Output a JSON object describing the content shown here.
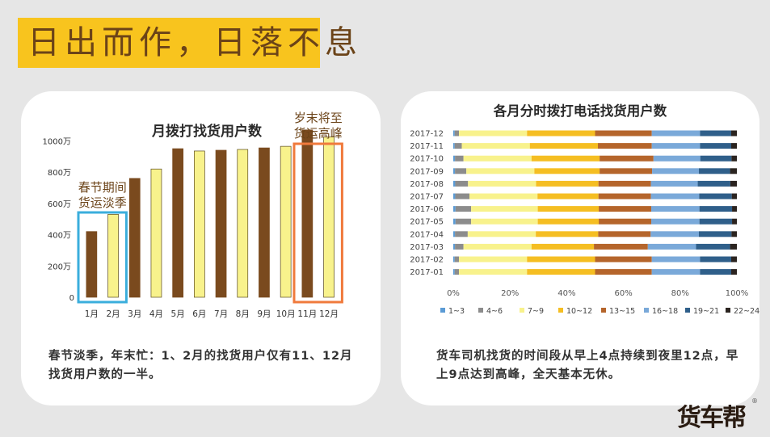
{
  "page": {
    "title": "日出而作，日落不息",
    "logo_text": "货车帮",
    "logo_mark": "®"
  },
  "colors": {
    "banner": "#f8c41e",
    "title_text": "#6b4318",
    "bar_dark": "#7a4a1e",
    "bar_light": "#f8f28c",
    "highlight_blue": "#3aaedc",
    "highlight_orange": "#f07a3c",
    "annotation_text": "#6b4318"
  },
  "chart_data": [
    {
      "type": "bar",
      "title": "月拨打找货用户数",
      "categories": [
        "1月",
        "2月",
        "3月",
        "4月",
        "5月",
        "6月",
        "7月",
        "8月",
        "9月",
        "10月",
        "11月",
        "12月"
      ],
      "values": [
        420,
        530,
        760,
        820,
        950,
        935,
        940,
        945,
        955,
        965,
        1070,
        1025
      ],
      "bar_styles": [
        "dark",
        "light",
        "dark",
        "light",
        "dark",
        "light",
        "dark",
        "light",
        "dark",
        "light",
        "dark",
        "light"
      ],
      "yticks": [
        {
          "value": 0,
          "label": "0"
        },
        {
          "value": 200,
          "label": "200万"
        },
        {
          "value": 400,
          "label": "400万"
        },
        {
          "value": 600,
          "label": "600万"
        },
        {
          "value": 800,
          "label": "800万"
        },
        {
          "value": 1000,
          "label": "1000万"
        }
      ],
      "ylim": [
        0,
        1100
      ],
      "annotations": [
        {
          "lines": [
            "春节期间",
            "货运淡季"
          ],
          "categories": [
            "1月",
            "2月"
          ],
          "color": "#3aaedc"
        },
        {
          "lines": [
            "岁末将至",
            "货运高峰"
          ],
          "categories": [
            "11月",
            "12月"
          ],
          "color": "#f07a3c"
        }
      ],
      "note": "春节淡季，年末忙：1、2月的找货用户仅有11、12月找货用户数的一半。"
    },
    {
      "type": "bar",
      "orientation": "horizontal",
      "stacked": "percent",
      "title": "各月分时拨打电话找货用户数",
      "categories": [
        "2017-12",
        "2017-11",
        "2017-10",
        "2017-09",
        "2017-08",
        "2017-07",
        "2017-06",
        "2017-05",
        "2017-04",
        "2017-03",
        "2017-02",
        "2017-01"
      ],
      "xticks": [
        "0%",
        "20%",
        "40%",
        "60%",
        "80%",
        "100%"
      ],
      "legend_position": "bottom",
      "series": [
        {
          "name": "1~3",
          "color": "#5b9bd5",
          "values": [
            0.5,
            0.5,
            0.6,
            0.6,
            0.7,
            0.7,
            0.8,
            0.8,
            0.6,
            0.6,
            0.5,
            0.5
          ]
        },
        {
          "name": "4~6",
          "color": "#8c8c8c",
          "values": [
            1.5,
            2.5,
            3,
            4,
            4.5,
            5,
            5.5,
            5.5,
            4.5,
            3,
            1.5,
            1.5
          ]
        },
        {
          "name": "7~9",
          "color": "#f8f28c",
          "values": [
            24,
            24,
            24,
            24,
            24,
            24,
            23.5,
            23.5,
            24,
            24,
            24,
            24
          ]
        },
        {
          "name": "10~12",
          "color": "#f5be22",
          "values": [
            24,
            24,
            24,
            23,
            22,
            21.5,
            21.5,
            21.5,
            22,
            22,
            24,
            24
          ]
        },
        {
          "name": "13~15",
          "color": "#b5652b",
          "values": [
            20,
            19,
            19,
            18.5,
            18.5,
            18.5,
            18.5,
            18.5,
            18.5,
            19,
            20,
            20
          ]
        },
        {
          "name": "16~18",
          "color": "#7aa9d9",
          "values": [
            17,
            17,
            16.5,
            16.5,
            16.5,
            17,
            17,
            17,
            17,
            17,
            17,
            17
          ]
        },
        {
          "name": "19~21",
          "color": "#2f5f8a",
          "values": [
            11,
            11,
            11,
            11,
            11.5,
            11.5,
            11.5,
            11.5,
            11.5,
            12,
            11,
            11
          ]
        },
        {
          "name": "22~24",
          "color": "#2b2420",
          "values": [
            2,
            2,
            1.9,
            2.4,
            2.3,
            1.8,
            1.7,
            1.7,
            1.9,
            2.4,
            2,
            2
          ]
        }
      ],
      "note": "货车司机找货的时间段从早上4点持续到夜里12点，早上9点达到高峰，全天基本无休。"
    }
  ]
}
